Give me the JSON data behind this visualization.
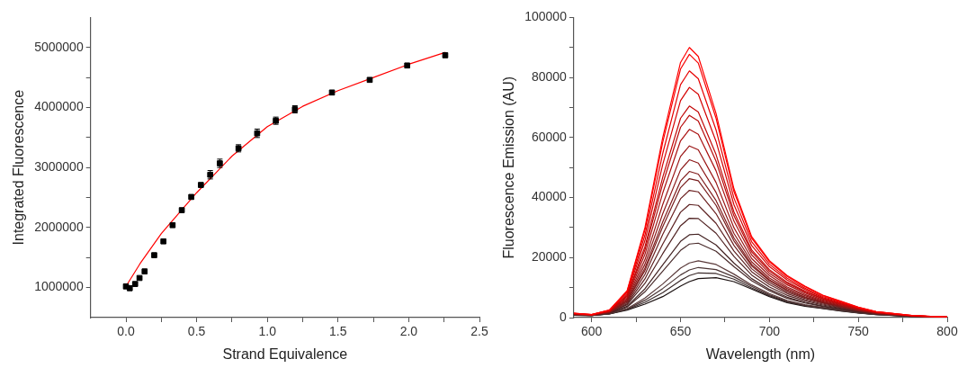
{
  "chart_data": [
    {
      "type": "scatter",
      "xlabel": "Strand Equivalence",
      "ylabel": "Integrated Fluorescence",
      "xlim": [
        -0.25,
        2.5
      ],
      "ylim": [
        500000,
        5500000
      ],
      "xticks": [
        {
          "value": 0,
          "label": "0.0"
        },
        {
          "value": 0.25,
          "label": null
        },
        {
          "value": 0.5,
          "label": "0.5"
        },
        {
          "value": 0.75,
          "label": null
        },
        {
          "value": 1,
          "label": "1.0"
        },
        {
          "value": 1.25,
          "label": null
        },
        {
          "value": 1.5,
          "label": "1.5"
        },
        {
          "value": 1.75,
          "label": null
        },
        {
          "value": 2,
          "label": "2.0"
        },
        {
          "value": 2.25,
          "label": null
        },
        {
          "value": 2.5,
          "label": "2.5"
        }
      ],
      "yticks": [
        {
          "value": 1000000,
          "label": "1000000"
        },
        {
          "value": 1500000,
          "label": null
        },
        {
          "value": 2000000,
          "label": "2000000"
        },
        {
          "value": 2500000,
          "label": null
        },
        {
          "value": 3000000,
          "label": "3000000"
        },
        {
          "value": 3500000,
          "label": null
        },
        {
          "value": 4000000,
          "label": "4000000"
        },
        {
          "value": 4500000,
          "label": null
        },
        {
          "value": 5000000,
          "label": "5000000"
        }
      ],
      "grid": false,
      "legend": false,
      "series": [
        {
          "type": "scatter",
          "color": "#000000",
          "marker": "square",
          "x": [
            0,
            0.027,
            0.065,
            0.096,
            0.132,
            0.2,
            0.265,
            0.33,
            0.395,
            0.462,
            0.53,
            0.596,
            0.664,
            0.796,
            0.928,
            1.06,
            1.195,
            1.457,
            1.724,
            1.989,
            2.258
          ],
          "values": [
            1020000,
            990000,
            1060000,
            1160000,
            1270000,
            1540000,
            1770000,
            2040000,
            2290000,
            2510000,
            2710000,
            2880000,
            3070000,
            3320000,
            3570000,
            3780000,
            3970000,
            4250000,
            4460000,
            4700000,
            4870000
          ],
          "errors": [
            null,
            null,
            null,
            null,
            null,
            null,
            null,
            null,
            null,
            null,
            null,
            70000,
            70000,
            60000,
            70000,
            60000,
            60000,
            null,
            null,
            null,
            null
          ]
        },
        {
          "type": "line",
          "color": "#ff0000",
          "marker": "none",
          "x": [
            0,
            0.1,
            0.25,
            0.5,
            0.75,
            1,
            1.25,
            1.5,
            1.75,
            2,
            2.26
          ],
          "values": [
            1020000,
            1400000,
            1900000,
            2580000,
            3190000,
            3680000,
            4020000,
            4280000,
            4500000,
            4720000,
            4920000
          ]
        }
      ]
    },
    {
      "type": "line",
      "xlabel": "Wavelength (nm)",
      "ylabel": "Fluorescence Emission (AU)",
      "xlim": [
        590,
        800
      ],
      "ylim": [
        0,
        100000
      ],
      "xticks": [
        600,
        {
          "value": 625,
          "label": null
        },
        650,
        {
          "value": 675,
          "label": null
        },
        700,
        {
          "value": 725,
          "label": null
        },
        750,
        {
          "value": 775,
          "label": null
        },
        800
      ],
      "yticks": [
        0,
        {
          "value": 10000,
          "label": null
        },
        20000,
        {
          "value": 30000,
          "label": null
        },
        40000,
        {
          "value": 50000,
          "label": null
        },
        60000,
        {
          "value": 70000,
          "label": null
        },
        80000,
        {
          "value": 90000,
          "label": null
        },
        100000
      ],
      "grid": false,
      "legend": false,
      "marker": "none",
      "x": [
        590,
        600,
        610,
        620,
        630,
        640,
        650,
        655,
        660,
        670,
        680,
        690,
        700,
        710,
        720,
        730,
        740,
        750,
        760,
        780,
        800
      ],
      "series": [
        {
          "color": "#ff0000",
          "values": [
            1500,
            1000,
            2500,
            9000,
            30000,
            60000,
            85000,
            90000,
            87000,
            68000,
            43000,
            27000,
            19000,
            14000,
            10500,
            7500,
            5500,
            3500,
            2000,
            700,
            200
          ]
        },
        {
          "color": "#f70000",
          "values": [
            1500,
            1000,
            2500,
            8800,
            29200,
            58400,
            82800,
            87700,
            84800,
            66400,
            42100,
            26500,
            18600,
            13700,
            10300,
            7400,
            5400,
            3400,
            2000,
            700,
            200
          ]
        },
        {
          "color": "#e60000",
          "values": [
            1400,
            1000,
            2400,
            8400,
            27500,
            54700,
            77600,
            82200,
            79600,
            62500,
            39900,
            25300,
            17800,
            13100,
            9800,
            7050,
            5200,
            3300,
            1900,
            700,
            200
          ]
        },
        {
          "color": "#d40000",
          "values": [
            1400,
            900,
            2300,
            7900,
            25700,
            51000,
            72300,
            76700,
            74400,
            58700,
            37700,
            24000,
            17000,
            12500,
            9400,
            6700,
            4900,
            3200,
            1800,
            600,
            200
          ]
        },
        {
          "color": "#c20808",
          "values": [
            1300,
            900,
            2200,
            7400,
            23600,
            46800,
            66400,
            70500,
            68500,
            54300,
            35300,
            22600,
            16000,
            11800,
            8800,
            6400,
            4700,
            3000,
            1800,
            600,
            200
          ]
        },
        {
          "color": "#b80b0b",
          "values": [
            1300,
            900,
            2100,
            7100,
            22600,
            44600,
            63400,
            67400,
            65500,
            52100,
            34000,
            21900,
            15500,
            11400,
            8600,
            6200,
            4500,
            2900,
            1700,
            600,
            200
          ]
        },
        {
          "color": "#aa1010",
          "values": [
            1300,
            900,
            2000,
            6700,
            21100,
            41500,
            58900,
            62700,
            61100,
            48900,
            32200,
            20900,
            14800,
            10900,
            8200,
            5900,
            4300,
            2800,
            1700,
            600,
            200
          ]
        },
        {
          "color": "#9a1414",
          "values": [
            1200,
            900,
            2000,
            6300,
            19300,
            37700,
            53700,
            57200,
            55900,
            45000,
            30000,
            19700,
            14000,
            10200,
            7700,
            5600,
            4100,
            2700,
            1600,
            600,
            200
          ]
        },
        {
          "color": "#8c1818",
          "values": [
            1200,
            900,
            1900,
            5900,
            17800,
            34600,
            49200,
            52600,
            51500,
            41700,
            28100,
            18600,
            13200,
            9700,
            7300,
            5300,
            3900,
            2500,
            1500,
            600,
            200
          ]
        },
        {
          "color": "#801c1c",
          "values": [
            1100,
            800,
            1800,
            5600,
            16500,
            31900,
            45500,
            48700,
            47800,
            39000,
            26600,
            17700,
            12600,
            9200,
            6900,
            5100,
            3800,
            2400,
            1500,
            500,
            100
          ]
        },
        {
          "color": "#781e1e",
          "values": [
            1100,
            800,
            1800,
            5400,
            15700,
            30300,
            43300,
            46300,
            45600,
            37400,
            25600,
            17200,
            12300,
            9000,
            6700,
            5000,
            3700,
            2400,
            1400,
            500,
            100
          ]
        },
        {
          "color": "#6c2020",
          "values": [
            1100,
            800,
            1700,
            5000,
            14400,
            27700,
            39600,
            42400,
            41900,
            34600,
            24100,
            16300,
            11700,
            8500,
            6400,
            4800,
            3500,
            2300,
            1400,
            500,
            100
          ]
        },
        {
          "color": "#5e2222",
          "values": [
            1000,
            800,
            1600,
            4600,
            12900,
            24500,
            35100,
            37700,
            37400,
            31400,
            22200,
            15300,
            11000,
            8000,
            6000,
            4500,
            3300,
            2200,
            1300,
            500,
            100
          ]
        },
        {
          "color": "#502222",
          "values": [
            1000,
            800,
            1600,
            4300,
            11400,
            21300,
            30600,
            33100,
            33000,
            28100,
            20400,
            14200,
            10200,
            7400,
            5600,
            4200,
            3100,
            2000,
            1300,
            500,
            100
          ]
        },
        {
          "color": "#442424",
          "values": [
            900,
            800,
            1500,
            3800,
            9600,
            17600,
            25400,
            27600,
            27800,
            24200,
            18200,
            13000,
            9400,
            6800,
            5100,
            3900,
            2900,
            1900,
            1200,
            500,
            100
          ]
        },
        {
          "color": "#4a2c2c",
          "values": [
            900,
            700,
            1400,
            3500,
            8600,
            15500,
            22400,
            24500,
            24800,
            22100,
            17000,
            12300,
            8900,
            6400,
            4900,
            3700,
            2700,
            1800,
            1200,
            400,
            100
          ]
        },
        {
          "color": "#5a3a3a",
          "values": [
            900,
            700,
            1300,
            3000,
            6500,
            11200,
            16500,
            18200,
            18900,
            17700,
            14500,
            10900,
            8000,
            5700,
            4300,
            3400,
            2500,
            1700,
            1100,
            400,
            100
          ]
        },
        {
          "color": "#4a3434",
          "values": [
            800,
            700,
            1300,
            2800,
            5800,
            9700,
            14200,
            15900,
            16700,
            16000,
            13600,
            10400,
            7600,
            5500,
            4100,
            3200,
            2400,
            1600,
            1100,
            400,
            100
          ]
        },
        {
          "color": "#3a2a2a",
          "values": [
            800,
            700,
            1200,
            2700,
            5100,
            8300,
            12400,
            14000,
            14900,
            14700,
            12800,
            9900,
            7300,
            5200,
            4000,
            3100,
            2300,
            1600,
            1000,
            400,
            100
          ]
        },
        {
          "color": "#1a1010",
          "values": [
            800,
            700,
            1200,
            2500,
            4500,
            7000,
            10500,
            12000,
            13000,
            13300,
            12000,
            9500,
            7000,
            5000,
            3800,
            3000,
            2200,
            1500,
            1000,
            400,
            100
          ]
        }
      ]
    }
  ]
}
